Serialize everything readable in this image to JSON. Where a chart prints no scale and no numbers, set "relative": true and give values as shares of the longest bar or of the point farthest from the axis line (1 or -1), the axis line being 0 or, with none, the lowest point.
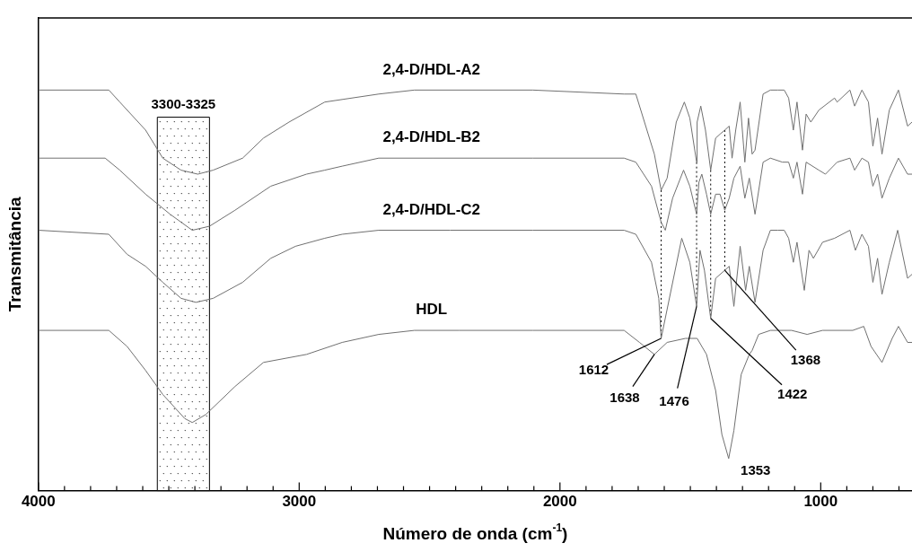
{
  "chart_data": {
    "type": "line",
    "relative": true,
    "xlabel": "Número de onda (cm$^{-1}$)",
    "ylabel": "Transmitância",
    "xlim": [
      4000,
      650
    ],
    "xticks": [
      4000,
      {
        "value": 3900,
        "label": null
      },
      {
        "value": 3800,
        "label": null
      },
      {
        "value": 3700,
        "label": null
      },
      {
        "value": 3600,
        "label": null
      },
      {
        "value": 3500,
        "label": null
      },
      {
        "value": 3400,
        "label": null
      },
      {
        "value": 3300,
        "label": null
      },
      {
        "value": 3200,
        "label": null
      },
      {
        "value": 3100,
        "label": null
      },
      3000,
      {
        "value": 2900,
        "label": null
      },
      {
        "value": 2800,
        "label": null
      },
      {
        "value": 2700,
        "label": null
      },
      {
        "value": 2600,
        "label": null
      },
      {
        "value": 2500,
        "label": null
      },
      {
        "value": 2400,
        "label": null
      },
      {
        "value": 2300,
        "label": null
      },
      {
        "value": 2200,
        "label": null
      },
      {
        "value": 2100,
        "label": null
      },
      2000,
      {
        "value": 1900,
        "label": null
      },
      {
        "value": 1800,
        "label": null
      },
      {
        "value": 1700,
        "label": null
      },
      {
        "value": 1600,
        "label": null
      },
      {
        "value": 1500,
        "label": null
      },
      {
        "value": 1400,
        "label": null
      },
      {
        "value": 1300,
        "label": null
      },
      {
        "value": 1200,
        "label": null
      },
      {
        "value": 1100,
        "label": null
      },
      1000,
      {
        "value": 900,
        "label": null
      },
      {
        "value": 800,
        "label": null
      },
      {
        "value": 700,
        "label": null
      }
    ],
    "grid": false,
    "legend": false,
    "marker": "none",
    "line_style": "solid",
    "series": [
      {
        "name": "2,4-D/HDL-A2",
        "color": "#707070",
        "x": [
          4000,
          3730,
          3688,
          3589,
          3523,
          3453,
          3389,
          3330,
          3217,
          3137,
          3039,
          2902,
          2695,
          2558,
          2105,
          1754,
          1709,
          1638,
          1612,
          1589,
          1554,
          1523,
          1502,
          1476,
          1474,
          1460,
          1442,
          1422,
          1403,
          1386,
          1368,
          1351,
          1340,
          1326,
          1309,
          1291,
          1277,
          1263,
          1252,
          1221,
          1193,
          1165,
          1140,
          1123,
          1105,
          1091,
          1070,
          1056,
          1038,
          1007,
          947,
          937,
          888,
          870,
          842,
          817,
          800,
          782,
          765,
          737,
          702,
          667,
          650
        ],
        "values": [
          1.0,
          1.0,
          0.97,
          0.9,
          0.83,
          0.8,
          0.79,
          0.8,
          0.83,
          0.88,
          0.92,
          0.97,
          0.99,
          1.0,
          1.0,
          0.99,
          0.99,
          0.84,
          0.75,
          0.78,
          0.92,
          0.97,
          0.93,
          0.82,
          0.92,
          0.96,
          0.9,
          0.8,
          0.88,
          0.89,
          0.9,
          0.91,
          0.83,
          0.9,
          0.97,
          0.82,
          0.93,
          0.84,
          0.85,
          0.99,
          1.0,
          1.0,
          1.0,
          0.98,
          0.9,
          0.97,
          0.85,
          0.94,
          0.92,
          0.95,
          0.98,
          0.97,
          1.0,
          0.96,
          1.0,
          0.97,
          0.86,
          0.93,
          0.84,
          0.95,
          1.0,
          0.91,
          0.92
        ]
      },
      {
        "name": "2,4-D/HDL-B2",
        "color": "#707070",
        "x": [
          4000,
          3744,
          3688,
          3589,
          3495,
          3410,
          3344,
          3246,
          3109,
          2972,
          2902,
          2835,
          2695,
          2488,
          2105,
          1754,
          1709,
          1649,
          1612,
          1596,
          1568,
          1526,
          1502,
          1476,
          1467,
          1456,
          1438,
          1422,
          1403,
          1386,
          1368,
          1351,
          1333,
          1309,
          1291,
          1274,
          1252,
          1221,
          1193,
          1147,
          1123,
          1105,
          1091,
          1070,
          1056,
          1007,
          982,
          937,
          888,
          870,
          842,
          817,
          800,
          782,
          765,
          737,
          702,
          667,
          650
        ],
        "values": [
          0.83,
          0.83,
          0.8,
          0.74,
          0.69,
          0.65,
          0.66,
          0.7,
          0.76,
          0.79,
          0.8,
          0.81,
          0.83,
          0.83,
          0.83,
          0.83,
          0.82,
          0.76,
          0.67,
          0.65,
          0.73,
          0.8,
          0.76,
          0.69,
          0.77,
          0.79,
          0.74,
          0.69,
          0.74,
          0.74,
          0.7,
          0.73,
          0.78,
          0.81,
          0.73,
          0.78,
          0.69,
          0.82,
          0.83,
          0.82,
          0.82,
          0.78,
          0.82,
          0.74,
          0.82,
          0.8,
          0.79,
          0.82,
          0.83,
          0.8,
          0.83,
          0.82,
          0.76,
          0.79,
          0.73,
          0.78,
          0.83,
          0.79,
          0.79
        ]
      },
      {
        "name": "2,4-D/HDL-C2",
        "color": "#707070",
        "x": [
          4000,
          3730,
          3660,
          3589,
          3523,
          3453,
          3396,
          3330,
          3217,
          3109,
          3014,
          2902,
          2835,
          2695,
          2421,
          2105,
          1754,
          1709,
          1649,
          1621,
          1612,
          1533,
          1502,
          1476,
          1463,
          1446,
          1422,
          1403,
          1368,
          1351,
          1333,
          1309,
          1288,
          1274,
          1252,
          1221,
          1193,
          1165,
          1140,
          1123,
          1105,
          1091,
          1063,
          1045,
          1028,
          993,
          947,
          888,
          867,
          842,
          817,
          800,
          782,
          765,
          737,
          705,
          667,
          650
        ],
        "values": [
          0.65,
          0.64,
          0.59,
          0.56,
          0.52,
          0.48,
          0.47,
          0.48,
          0.52,
          0.58,
          0.61,
          0.63,
          0.64,
          0.65,
          0.65,
          0.65,
          0.65,
          0.64,
          0.57,
          0.48,
          0.38,
          0.63,
          0.57,
          0.46,
          0.6,
          0.55,
          0.43,
          0.53,
          0.55,
          0.56,
          0.46,
          0.61,
          0.5,
          0.56,
          0.47,
          0.6,
          0.65,
          0.65,
          0.65,
          0.63,
          0.57,
          0.62,
          0.5,
          0.6,
          0.58,
          0.62,
          0.63,
          0.65,
          0.6,
          0.64,
          0.61,
          0.52,
          0.58,
          0.49,
          0.57,
          0.65,
          0.53,
          0.54
        ]
      },
      {
        "name": "HDL",
        "color": "#707070",
        "x": [
          4000,
          3730,
          3660,
          3589,
          3523,
          3439,
          3410,
          3358,
          3246,
          3137,
          2972,
          2835,
          2695,
          2558,
          2386,
          2105,
          1754,
          1695,
          1638,
          1589,
          1519,
          1474,
          1438,
          1403,
          1379,
          1353,
          1333,
          1305,
          1274,
          1263,
          1238,
          1193,
          1112,
          1052,
          993,
          877,
          835,
          807,
          765,
          726,
          702,
          667,
          650
        ],
        "values": [
          0.4,
          0.4,
          0.36,
          0.3,
          0.24,
          0.18,
          0.17,
          0.19,
          0.26,
          0.32,
          0.34,
          0.37,
          0.39,
          0.4,
          0.4,
          0.4,
          0.4,
          0.37,
          0.34,
          0.37,
          0.38,
          0.38,
          0.34,
          0.25,
          0.14,
          0.08,
          0.15,
          0.29,
          0.34,
          0.35,
          0.39,
          0.4,
          0.4,
          0.39,
          0.4,
          0.4,
          0.41,
          0.36,
          0.32,
          0.38,
          0.41,
          0.37,
          0.37
        ]
      },
      {
        "type": "line",
        "color": "#000000",
        "line_style": "dotted",
        "x": [
          1612,
          1612
        ],
        "values": [
          0.75,
          0.38
        ]
      },
      {
        "type": "line",
        "color": "#000000",
        "line_style": "dotted",
        "x": [
          1476,
          1476
        ],
        "values": [
          0.82,
          0.46
        ]
      },
      {
        "type": "line",
        "color": "#000000",
        "line_style": "dotted",
        "x": [
          1422,
          1422
        ],
        "values": [
          0.8,
          0.43
        ]
      },
      {
        "type": "line",
        "color": "#000000",
        "line_style": "dotted",
        "x": [
          1368,
          1368
        ],
        "values": [
          0.9,
          0.55
        ]
      }
    ],
    "bands": [
      {
        "axis": "x",
        "from": 3544,
        "to": 3344,
        "label": "3300-3325"
      }
    ],
    "annotations": [
      {
        "text": "1612",
        "x": 1612,
        "y": 0.38
      },
      {
        "text": "1638",
        "x": 1638,
        "y": 0.34
      },
      {
        "text": "1476",
        "x": 1476,
        "y": 0.46
      },
      {
        "text": "1422",
        "x": 1422,
        "y": 0.43
      },
      {
        "text": "1368",
        "x": 1368,
        "y": 0.55
      },
      {
        "text": "1353",
        "x": 1353,
        "y": 0.08
      }
    ]
  }
}
